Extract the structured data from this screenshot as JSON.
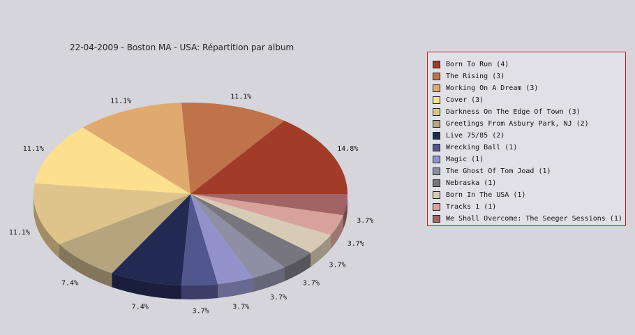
{
  "chart_data": {
    "type": "pie",
    "title": "22-04-2009 - Boston MA - USA:  Répartition par album",
    "legend_position": "right",
    "slices": [
      {
        "label": "Born To Run (4)",
        "value": 4,
        "percent_label": "14.8%",
        "color": "#a03c28"
      },
      {
        "label": "The Rising (3)",
        "value": 3,
        "percent_label": "11.1%",
        "color": "#c0724a"
      },
      {
        "label": "Working On A Dream (3)",
        "value": 3,
        "percent_label": "11.1%",
        "color": "#e0a96e"
      },
      {
        "label": "Cover (3)",
        "value": 3,
        "percent_label": "11.1%",
        "color": "#fde08e"
      },
      {
        "label": "Darkness On The Edge Of Town (3)",
        "value": 3,
        "percent_label": "11.1%",
        "color": "#dec48a"
      },
      {
        "label": "Greetings From Asbury Park, NJ (2)",
        "value": 2,
        "percent_label": "7.4%",
        "color": "#b6a47e"
      },
      {
        "label": "Live 75/85 (2)",
        "value": 2,
        "percent_label": "7.4%",
        "color": "#222a54"
      },
      {
        "label": "Wrecking Ball (1)",
        "value": 1,
        "percent_label": "3.7%",
        "color": "#52568e"
      },
      {
        "label": "Magic (1)",
        "value": 1,
        "percent_label": "3.7%",
        "color": "#9192ca"
      },
      {
        "label": "The Ghost Of Tom Joad (1)",
        "value": 1,
        "percent_label": "3.7%",
        "color": "#8e8ea4"
      },
      {
        "label": "Nebraska (1)",
        "value": 1,
        "percent_label": "3.7%",
        "color": "#77767e"
      },
      {
        "label": "Born In The USA (1)",
        "value": 1,
        "percent_label": "3.7%",
        "color": "#d8cbb4"
      },
      {
        "label": "Tracks 1 (1)",
        "value": 1,
        "percent_label": "3.7%",
        "color": "#d8a29a"
      },
      {
        "label": "We Shall Overcome: The Seeger Sessions (1)",
        "value": 1,
        "percent_label": "3.7%",
        "color": "#a06464"
      }
    ]
  }
}
